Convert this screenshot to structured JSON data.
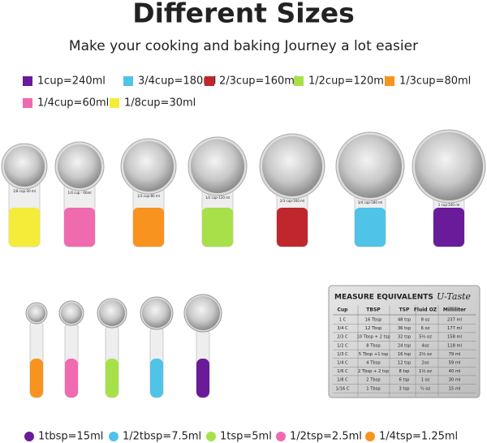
{
  "header": {
    "title": "Different Sizes",
    "subtitle": "Make your cooking and baking Journey a lot easier"
  },
  "cup_legend": [
    {
      "label": "1cup=240ml",
      "color": "#6a1b9a"
    },
    {
      "label": "3/4cup=180ml",
      "color": "#4fc3e8"
    },
    {
      "label": "2/3cup=160ml",
      "color": "#c0272d"
    },
    {
      "label": "1/2cup=120ml",
      "color": "#a8e04a"
    },
    {
      "label": "1/3cup=80ml",
      "color": "#f7931e"
    },
    {
      "label": "1/4cup=60ml",
      "color": "#f06ab0"
    },
    {
      "label": "1/8cup=30ml",
      "color": "#f5ec3a"
    }
  ],
  "cups": [
    {
      "label": "1/8 cup-30 ml",
      "color": "#f5ec3a"
    },
    {
      "label": "1/4 cup - 60ml",
      "color": "#f06ab0"
    },
    {
      "label": "1/3 cup-80 ml",
      "color": "#f7931e"
    },
    {
      "label": "1/2 cup-120 ml",
      "color": "#a8e04a"
    },
    {
      "label": "2/3 cup-160 ml",
      "color": "#c0272d"
    },
    {
      "label": "3/4 cup-180 ml",
      "color": "#4fc3e8"
    },
    {
      "label": "1 cup-240 ml",
      "color": "#6a1b9a"
    }
  ],
  "spoons": [
    {
      "color": "#f7931e"
    },
    {
      "color": "#f06ab0"
    },
    {
      "color": "#a8e04a"
    },
    {
      "color": "#4fc3e8"
    },
    {
      "color": "#6a1b9a"
    }
  ],
  "table": {
    "title": "MEASURE EQUIVALENTS",
    "brand": "U-Taste",
    "columns": [
      "Cup",
      "TBSP",
      "TSP",
      "Fluid OZ",
      "Milliliter"
    ],
    "rows": [
      [
        "1 C",
        "16 Tbsp",
        "48 tsp",
        "8 oz",
        "237 ml"
      ],
      [
        "3/4 C",
        "12 Tbsp",
        "36 tsp",
        "6 oz",
        "177 ml"
      ],
      [
        "2/3 C",
        "10 Tbsp + 2 tsp",
        "32 tsp",
        "5⅓ oz",
        "158 ml"
      ],
      [
        "1/2 C",
        "8 Tbsp",
        "24 tsp",
        "4oz",
        "118 ml"
      ],
      [
        "1/3 C",
        "5 Tbsp +1 tsp",
        "16 tsp",
        "2⅔ oz",
        "79 ml"
      ],
      [
        "1/4 C",
        "4 Tbsp",
        "12 tsp",
        "2oz",
        "59 ml"
      ],
      [
        "1/6 C",
        "2 Tbsp + 2 tsp",
        "8 tsp",
        "1⅓ oz",
        "40 ml"
      ],
      [
        "1/8 C",
        "2 Tbsp",
        "6 tsp",
        "1 oz",
        "30 ml"
      ],
      [
        "1/16 C",
        "1 Tbsp",
        "3 tsp",
        "½ oz",
        "15 ml"
      ]
    ]
  },
  "spoon_legend": [
    {
      "label": "1tbsp=15ml",
      "color": "#6a1b9a"
    },
    {
      "label": "1/2tbsp=7.5ml",
      "color": "#4fc3e8"
    },
    {
      "label": "1tsp=5ml",
      "color": "#a8e04a"
    },
    {
      "label": "1/2tsp=2.5ml",
      "color": "#f06ab0"
    },
    {
      "label": "1/4tsp=1.25ml",
      "color": "#f7931e"
    }
  ]
}
